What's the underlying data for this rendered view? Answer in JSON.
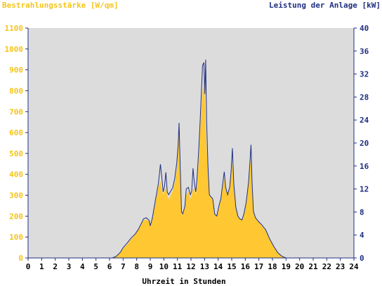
{
  "chart_data": {
    "type": "area",
    "left_axis_title": "Bestrahlungsstärke [W/qm]",
    "right_axis_title": "Leistung der Anlage [kW]",
    "xlabel": "Uhrzeit in Stunden",
    "x_ticks": [
      "0",
      "1",
      "2",
      "3",
      "4",
      "5",
      "6",
      "7",
      "8",
      "9",
      "10",
      "11",
      "12",
      "13",
      "14",
      "15",
      "16",
      "17",
      "18",
      "19",
      "20",
      "21",
      "22",
      "23",
      "24"
    ],
    "y_left_ticks": [
      "0",
      "100",
      "200",
      "300",
      "400",
      "500",
      "600",
      "700",
      "800",
      "900",
      "1000",
      "1100"
    ],
    "y_right_ticks": [
      "0",
      "4",
      "8",
      "12",
      "16",
      "20",
      "24",
      "28",
      "32",
      "36",
      "40"
    ],
    "xlim": [
      0,
      24
    ],
    "ylim_left": [
      0,
      1100
    ],
    "ylim_right": [
      0,
      40
    ],
    "grid": false,
    "colors": {
      "irradiance_fill": "#ffc832",
      "power_line": "#1f2f80",
      "plot_background": "#dcdcdc",
      "left_axis_text": "#f5c518",
      "right_axis_text": "#1f2f80"
    },
    "series": [
      {
        "axis": "left",
        "style": "area",
        "points": [
          [
            0,
            0
          ],
          [
            6.2,
            0
          ],
          [
            6.5,
            8
          ],
          [
            6.8,
            25
          ],
          [
            7.0,
            45
          ],
          [
            7.3,
            65
          ],
          [
            7.6,
            90
          ],
          [
            7.9,
            115
          ],
          [
            8.1,
            135
          ],
          [
            8.3,
            160
          ],
          [
            8.5,
            180
          ],
          [
            8.7,
            185
          ],
          [
            8.9,
            175
          ],
          [
            9.0,
            160
          ],
          [
            9.15,
            190
          ],
          [
            9.3,
            240
          ],
          [
            9.45,
            290
          ],
          [
            9.6,
            340
          ],
          [
            9.75,
            370
          ],
          [
            9.85,
            330
          ],
          [
            9.95,
            300
          ],
          [
            10.05,
            320
          ],
          [
            10.15,
            340
          ],
          [
            10.25,
            300
          ],
          [
            10.35,
            280
          ],
          [
            10.5,
            300
          ],
          [
            10.65,
            320
          ],
          [
            10.8,
            360
          ],
          [
            10.95,
            420
          ],
          [
            11.05,
            520
          ],
          [
            11.12,
            600
          ],
          [
            11.2,
            430
          ],
          [
            11.3,
            230
          ],
          [
            11.4,
            210
          ],
          [
            11.55,
            250
          ],
          [
            11.65,
            300
          ],
          [
            11.8,
            320
          ],
          [
            11.95,
            280
          ],
          [
            12.05,
            300
          ],
          [
            12.15,
            330
          ],
          [
            12.25,
            330
          ],
          [
            12.35,
            300
          ],
          [
            12.45,
            350
          ],
          [
            12.55,
            440
          ],
          [
            12.65,
            570
          ],
          [
            12.75,
            700
          ],
          [
            12.85,
            800
          ],
          [
            12.95,
            830
          ],
          [
            13.02,
            760
          ],
          [
            13.08,
            650
          ],
          [
            13.15,
            520
          ],
          [
            13.25,
            420
          ],
          [
            13.35,
            300
          ],
          [
            13.45,
            290
          ],
          [
            13.6,
            280
          ],
          [
            13.75,
            210
          ],
          [
            13.9,
            200
          ],
          [
            14.05,
            240
          ],
          [
            14.2,
            280
          ],
          [
            14.35,
            350
          ],
          [
            14.45,
            380
          ],
          [
            14.55,
            330
          ],
          [
            14.7,
            300
          ],
          [
            14.85,
            330
          ],
          [
            14.95,
            400
          ],
          [
            15.05,
            460
          ],
          [
            15.15,
            350
          ],
          [
            15.3,
            240
          ],
          [
            15.45,
            200
          ],
          [
            15.6,
            185
          ],
          [
            15.75,
            180
          ],
          [
            15.9,
            210
          ],
          [
            16.05,
            260
          ],
          [
            16.15,
            310
          ],
          [
            16.25,
            360
          ],
          [
            16.35,
            440
          ],
          [
            16.42,
            480
          ],
          [
            16.5,
            360
          ],
          [
            16.6,
            220
          ],
          [
            16.75,
            190
          ],
          [
            16.95,
            175
          ],
          [
            17.2,
            155
          ],
          [
            17.5,
            130
          ],
          [
            17.8,
            90
          ],
          [
            18.1,
            55
          ],
          [
            18.4,
            25
          ],
          [
            18.7,
            8
          ],
          [
            19.0,
            0
          ],
          [
            24,
            0
          ]
        ]
      },
      {
        "axis": "right",
        "style": "line",
        "points": [
          [
            0,
            0
          ],
          [
            6.2,
            0
          ],
          [
            6.5,
            0.3
          ],
          [
            6.8,
            1.0
          ],
          [
            7.0,
            1.8
          ],
          [
            7.3,
            2.6
          ],
          [
            7.6,
            3.5
          ],
          [
            7.9,
            4.2
          ],
          [
            8.1,
            4.9
          ],
          [
            8.3,
            5.8
          ],
          [
            8.5,
            6.8
          ],
          [
            8.7,
            7.0
          ],
          [
            8.9,
            6.6
          ],
          [
            9.0,
            5.6
          ],
          [
            9.15,
            6.9
          ],
          [
            9.3,
            9.0
          ],
          [
            9.45,
            11.0
          ],
          [
            9.6,
            13.0
          ],
          [
            9.75,
            16.3
          ],
          [
            9.85,
            14.0
          ],
          [
            9.95,
            11.5
          ],
          [
            10.05,
            12.5
          ],
          [
            10.15,
            14.9
          ],
          [
            10.25,
            11.5
          ],
          [
            10.35,
            11.0
          ],
          [
            10.5,
            11.6
          ],
          [
            10.65,
            12.2
          ],
          [
            10.8,
            13.8
          ],
          [
            10.95,
            16.5
          ],
          [
            11.05,
            19.5
          ],
          [
            11.12,
            23.5
          ],
          [
            11.2,
            16.5
          ],
          [
            11.3,
            8.0
          ],
          [
            11.4,
            7.7
          ],
          [
            11.55,
            9.0
          ],
          [
            11.65,
            12.0
          ],
          [
            11.8,
            12.3
          ],
          [
            11.95,
            11.0
          ],
          [
            12.05,
            11.6
          ],
          [
            12.15,
            15.6
          ],
          [
            12.25,
            13.0
          ],
          [
            12.35,
            11.5
          ],
          [
            12.45,
            14.0
          ],
          [
            12.55,
            18.0
          ],
          [
            12.65,
            22.6
          ],
          [
            12.75,
            28.0
          ],
          [
            12.85,
            33.5
          ],
          [
            12.95,
            34.0
          ],
          [
            13.02,
            28.5
          ],
          [
            13.08,
            34.5
          ],
          [
            13.15,
            24.0
          ],
          [
            13.25,
            16.0
          ],
          [
            13.35,
            11.0
          ],
          [
            13.45,
            10.7
          ],
          [
            13.6,
            10.3
          ],
          [
            13.75,
            7.6
          ],
          [
            13.9,
            7.3
          ],
          [
            14.05,
            9.0
          ],
          [
            14.2,
            10.3
          ],
          [
            14.35,
            13.2
          ],
          [
            14.45,
            15.0
          ],
          [
            14.55,
            12.3
          ],
          [
            14.7,
            11.0
          ],
          [
            14.85,
            12.3
          ],
          [
            14.95,
            15.0
          ],
          [
            15.05,
            19.1
          ],
          [
            15.15,
            13.0
          ],
          [
            15.3,
            8.9
          ],
          [
            15.45,
            7.3
          ],
          [
            15.6,
            6.8
          ],
          [
            15.75,
            6.6
          ],
          [
            15.9,
            7.7
          ],
          [
            16.05,
            9.5
          ],
          [
            16.15,
            11.3
          ],
          [
            16.25,
            13.5
          ],
          [
            16.35,
            17.0
          ],
          [
            16.42,
            19.7
          ],
          [
            16.5,
            13.0
          ],
          [
            16.6,
            8.1
          ],
          [
            16.75,
            7.0
          ],
          [
            16.95,
            6.4
          ],
          [
            17.2,
            5.8
          ],
          [
            17.5,
            4.9
          ],
          [
            17.8,
            3.3
          ],
          [
            18.1,
            2.0
          ],
          [
            18.4,
            0.9
          ],
          [
            18.7,
            0.3
          ],
          [
            19.0,
            0
          ],
          [
            24,
            0
          ]
        ]
      }
    ]
  }
}
